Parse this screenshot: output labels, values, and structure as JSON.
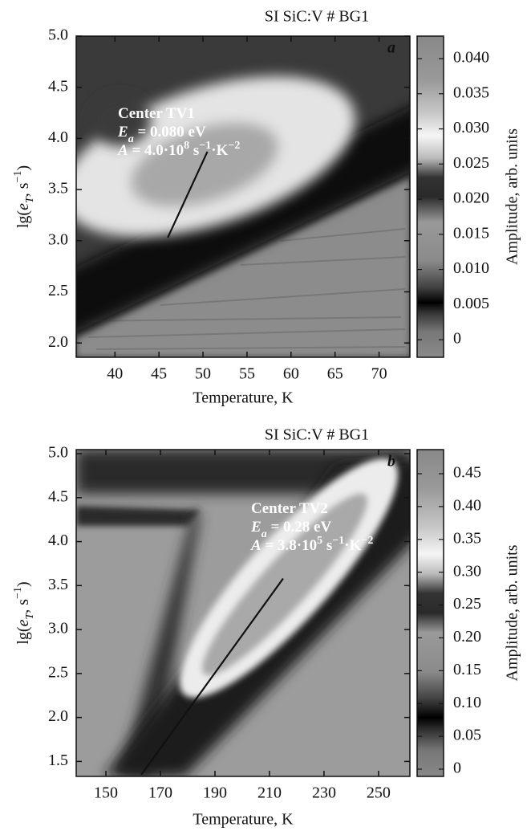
{
  "chart_data": [
    {
      "type": "heatmap",
      "title": "SI SiC:V # BG1",
      "panel": "a",
      "xlabel": "Temperature, K",
      "ylabel": [
        {
          "text": "lg("
        },
        {
          "text": "e",
          "italic": true
        },
        {
          "text": "T",
          "italic": true,
          "sub": true
        },
        {
          "text": ", s"
        },
        {
          "text": "−1",
          "sup": true
        },
        {
          "text": ")"
        }
      ],
      "xlim": [
        35.6,
        73.5
      ],
      "xticks": [
        40,
        45,
        50,
        55,
        60,
        65,
        70
      ],
      "ylim": [
        1.86,
        5.0
      ],
      "yticks": [
        {
          "value": 5.0,
          "label": "5.0"
        },
        4.5,
        {
          "value": 4.0,
          "label": "4.0"
        },
        3.5,
        {
          "value": 3.0,
          "label": "3.0"
        },
        2.5,
        {
          "value": 2.0,
          "label": "2.0"
        }
      ],
      "colorbar": {
        "label": "Amplitude, arb. units",
        "lim": [
          -0.0025,
          0.0432
        ],
        "ticks": [
          {
            "value": 0.04,
            "label": "0.040"
          },
          0.035,
          {
            "value": 0.03,
            "label": "0.030"
          },
          0.025,
          {
            "value": 0.02,
            "label": "0.020"
          },
          0.015,
          {
            "value": 0.01,
            "label": "0.010"
          },
          0.005,
          0
        ]
      },
      "annotation": [
        [
          {
            "text": "Center TV1"
          }
        ],
        [
          {
            "text": "E",
            "italic": true
          },
          {
            "text": "a",
            "italic": true,
            "sub": true
          },
          {
            "text": " = 0.080 eV"
          }
        ],
        [
          {
            "text": "A",
            "italic": true
          },
          {
            "text": " = 4.0·10"
          },
          {
            "text": "8",
            "sup": true
          },
          {
            "text": " s"
          },
          {
            "text": "−1",
            "sup": true
          },
          {
            "text": "·K"
          },
          {
            "text": "−2",
            "sup": true
          }
        ]
      ],
      "fit_line": {
        "x": [
          46,
          50.5
        ],
        "y": [
          3.03,
          3.87
        ],
        "color": "#111111"
      }
    },
    {
      "type": "heatmap",
      "title": "SI SiC:V # BG1",
      "panel": "b",
      "xlabel": "Temperature, K",
      "ylabel": [
        {
          "text": "lg("
        },
        {
          "text": "e",
          "italic": true
        },
        {
          "text": "T",
          "italic": true,
          "sub": true
        },
        {
          "text": ", s"
        },
        {
          "text": "−1",
          "sup": true
        },
        {
          "text": ")"
        }
      ],
      "xlim": [
        139.1,
        261.5
      ],
      "xticks": [
        150,
        170,
        190,
        210,
        230,
        250
      ],
      "ylim": [
        1.33,
        5.046
      ],
      "yticks": [
        {
          "value": 5.0,
          "label": "5.0"
        },
        4.5,
        {
          "value": 4.0,
          "label": "4.0"
        },
        3.5,
        {
          "value": 3.0,
          "label": "3.0"
        },
        2.5,
        {
          "value": 2.0,
          "label": "2.0"
        },
        1.5
      ],
      "colorbar": {
        "label": "Amplitude, arb. units",
        "lim": [
          -0.011,
          0.4867
        ],
        "ticks": [
          0.45,
          {
            "value": 0.4,
            "label": "0.40"
          },
          0.35,
          {
            "value": 0.3,
            "label": "0.30"
          },
          0.25,
          {
            "value": 0.2,
            "label": "0.20"
          },
          0.15,
          {
            "value": 0.1,
            "label": "0.10"
          },
          0.05,
          0
        ]
      },
      "annotation": [
        [
          {
            "text": "Center TV2"
          }
        ],
        [
          {
            "text": "E",
            "italic": true
          },
          {
            "text": "a",
            "italic": true,
            "sub": true
          },
          {
            "text": " = 0.28 eV"
          }
        ],
        [
          {
            "text": "A",
            "italic": true
          },
          {
            "text": " = 3.8·10"
          },
          {
            "text": "5",
            "sup": true
          },
          {
            "text": " s"
          },
          {
            "text": "−1",
            "sup": true
          },
          {
            "text": "·K"
          },
          {
            "text": "−2",
            "sup": true
          }
        ]
      ],
      "fit_line": {
        "x": [
          163,
          215
        ],
        "y": [
          1.35,
          3.58
        ],
        "color": "#111111"
      }
    }
  ]
}
